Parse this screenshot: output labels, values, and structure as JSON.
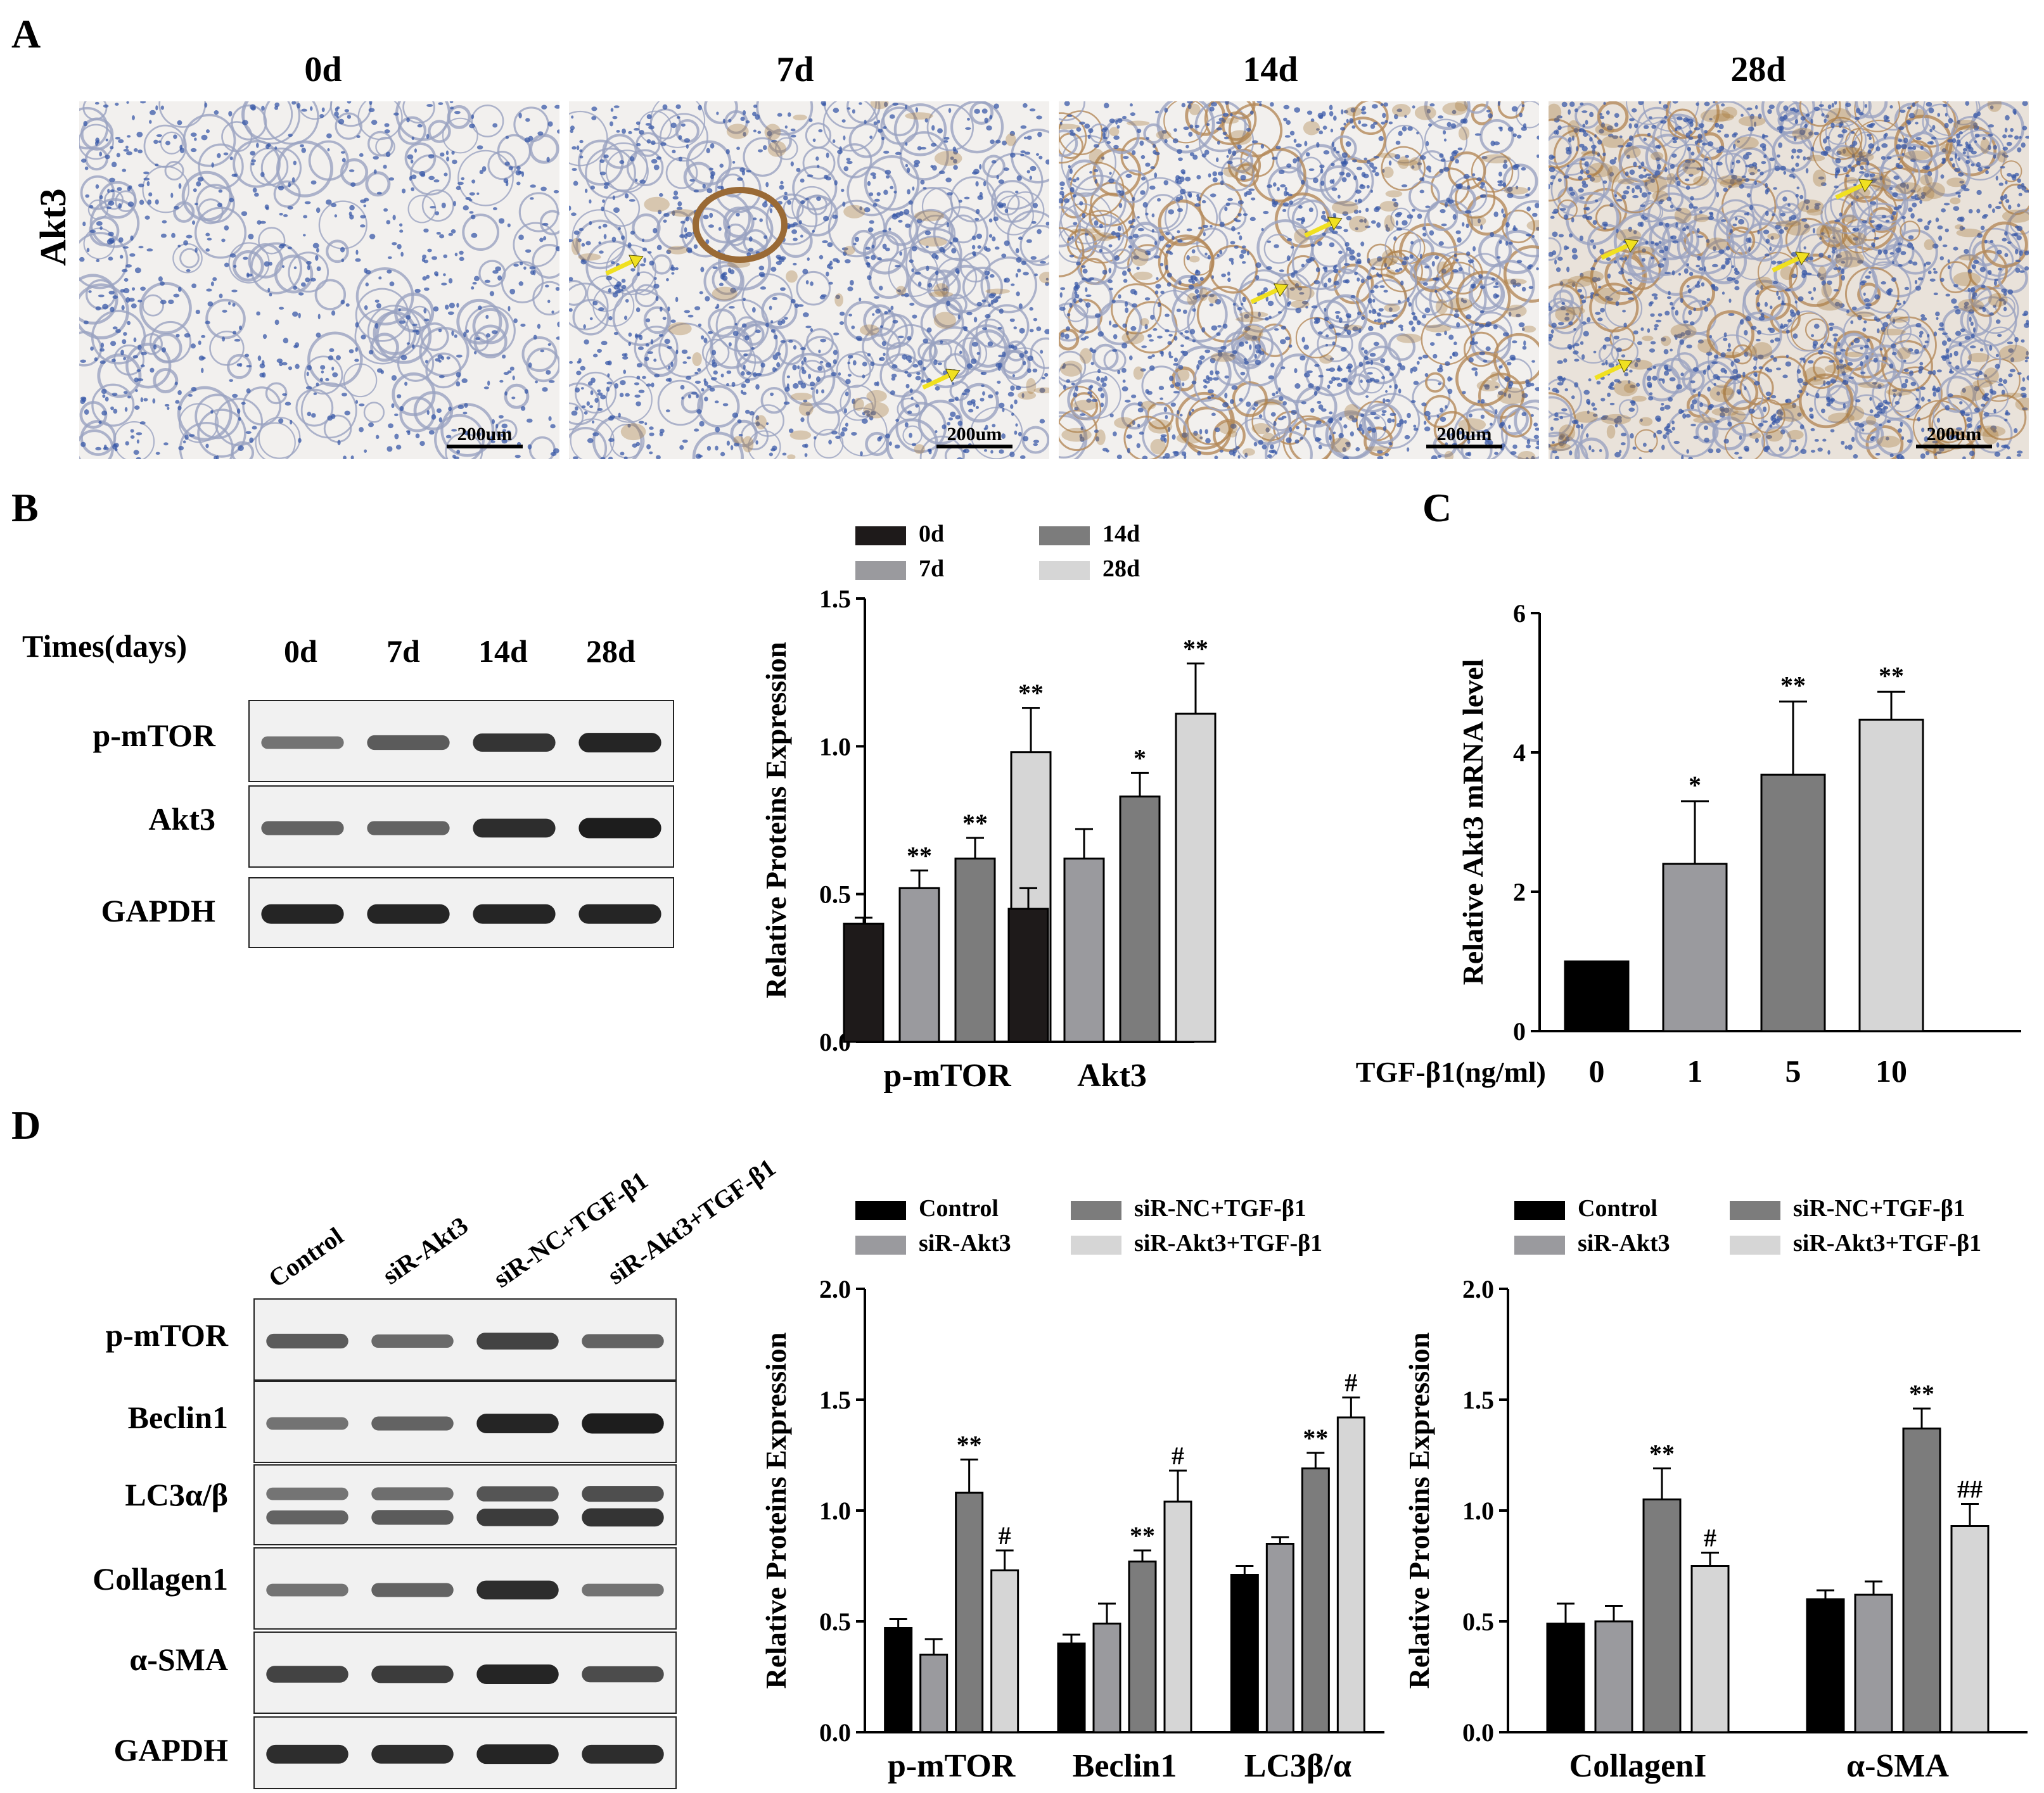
{
  "panels": {
    "A": {
      "letter": "A",
      "row_label": "Akt3",
      "timepoints": [
        "0d",
        "7d",
        "14d",
        "28d"
      ],
      "scale_bar": "200um",
      "tissue_colors": {
        "background": "#f2f0ee",
        "nuclei": "#3a5aa8",
        "stain": "#a6783a",
        "arrow": "#f0e020"
      }
    },
    "B": {
      "letter": "B",
      "header_label": "Times(days)",
      "lanes": [
        "0d",
        "7d",
        "14d",
        "28d"
      ],
      "rows": [
        "p-mTOR",
        "Akt3",
        "GAPDH"
      ]
    },
    "C": {
      "letter": "C"
    },
    "D": {
      "letter": "D",
      "lanes": [
        "Control",
        "siR-Akt3",
        "siR-NC+TGF-β1",
        "siR-Akt3+TGF-β1"
      ],
      "rows": [
        "p-mTOR",
        "Beclin1",
        "LC3α/β",
        "Collagen1",
        "α-SMA",
        "GAPDH"
      ]
    }
  },
  "chart_data": [
    {
      "id": "B-chart",
      "type": "bar",
      "ylabel": "Relative Proteins Expression",
      "ylim": [
        0,
        1.5
      ],
      "yticks": [
        "0.0",
        "0.5",
        "1.0",
        "1.5"
      ],
      "categories": [
        "p-mTOR",
        "Akt3"
      ],
      "series": [
        {
          "name": "0d",
          "color": "#1e1a1a",
          "values": [
            0.4,
            0.45
          ],
          "errors": [
            0.02,
            0.07
          ],
          "marks": [
            "",
            ""
          ]
        },
        {
          "name": "7d",
          "color": "#9a9a9e",
          "values": [
            0.52,
            0.62
          ],
          "errors": [
            0.06,
            0.1
          ],
          "marks": [
            "**",
            ""
          ]
        },
        {
          "name": "14d",
          "color": "#7c7c7c",
          "values": [
            0.62,
            0.83
          ],
          "errors": [
            0.07,
            0.08
          ],
          "marks": [
            "**",
            "*"
          ]
        },
        {
          "name": "28d",
          "color": "#d6d6d6",
          "values": [
            0.98,
            1.11
          ],
          "errors": [
            0.15,
            0.17
          ],
          "marks": [
            "**",
            "**"
          ]
        }
      ],
      "legend": "top"
    },
    {
      "id": "C-chart",
      "type": "bar",
      "ylabel": "Relative Akt3 mRNA level",
      "xlabel": "TGF-β1(ng/ml)",
      "ylim": [
        0,
        6
      ],
      "yticks": [
        "0",
        "2",
        "4",
        "6"
      ],
      "categories": [
        "0",
        "1",
        "5",
        "10"
      ],
      "colors": [
        "#000000",
        "#9a9a9e",
        "#7c7c7c",
        "#d6d6d6"
      ],
      "values": [
        1.0,
        2.4,
        3.68,
        4.47
      ],
      "errors": [
        0,
        0.9,
        1.05,
        0.4
      ],
      "marks": [
        "",
        "*",
        "**",
        "**"
      ]
    },
    {
      "id": "D-chart-1",
      "type": "bar",
      "ylabel": "Relative Proteins Expression",
      "ylim": [
        0,
        2.0
      ],
      "yticks": [
        "0.0",
        "0.5",
        "1.0",
        "1.5",
        "2.0"
      ],
      "categories": [
        "p-mTOR",
        "Beclin1",
        "LC3β/α"
      ],
      "series": [
        {
          "name": "Control",
          "color": "#000000",
          "values": [
            0.47,
            0.4,
            0.71
          ],
          "errors": [
            0.04,
            0.04,
            0.04
          ],
          "marks": [
            "",
            "",
            ""
          ]
        },
        {
          "name": "siR-Akt3",
          "color": "#9a9a9e",
          "values": [
            0.35,
            0.49,
            0.85
          ],
          "errors": [
            0.07,
            0.09,
            0.03
          ],
          "marks": [
            "",
            "",
            ""
          ]
        },
        {
          "name": "siR-NC+TGF-β1",
          "color": "#7c7c7c",
          "values": [
            1.08,
            0.77,
            1.19
          ],
          "errors": [
            0.15,
            0.05,
            0.07
          ],
          "marks": [
            "**",
            "**",
            "**"
          ]
        },
        {
          "name": "siR-Akt3+TGF-β1",
          "color": "#d6d6d6",
          "values": [
            0.73,
            1.04,
            1.42
          ],
          "errors": [
            0.09,
            0.14,
            0.09
          ],
          "marks": [
            "#",
            "#",
            "#"
          ]
        }
      ],
      "legend": "top"
    },
    {
      "id": "D-chart-2",
      "type": "bar",
      "ylabel": "Relative Proteins Expression",
      "ylim": [
        0,
        2.0
      ],
      "yticks": [
        "0.0",
        "0.5",
        "1.0",
        "1.5",
        "2.0"
      ],
      "categories": [
        "CollagenI",
        "α-SMA"
      ],
      "series": [
        {
          "name": "Control",
          "color": "#000000",
          "values": [
            0.49,
            0.6
          ],
          "errors": [
            0.09,
            0.04
          ],
          "marks": [
            "",
            ""
          ]
        },
        {
          "name": "siR-Akt3",
          "color": "#9a9a9e",
          "values": [
            0.5,
            0.62
          ],
          "errors": [
            0.07,
            0.06
          ],
          "marks": [
            "",
            ""
          ]
        },
        {
          "name": "siR-NC+TGF-β1",
          "color": "#7c7c7c",
          "values": [
            1.05,
            1.37
          ],
          "errors": [
            0.14,
            0.09
          ],
          "marks": [
            "**",
            "**"
          ]
        },
        {
          "name": "siR-Akt3+TGF-β1",
          "color": "#d6d6d6",
          "values": [
            0.75,
            0.93
          ],
          "errors": [
            0.06,
            0.1
          ],
          "marks": [
            "#",
            "##"
          ]
        }
      ],
      "legend": "top"
    }
  ]
}
